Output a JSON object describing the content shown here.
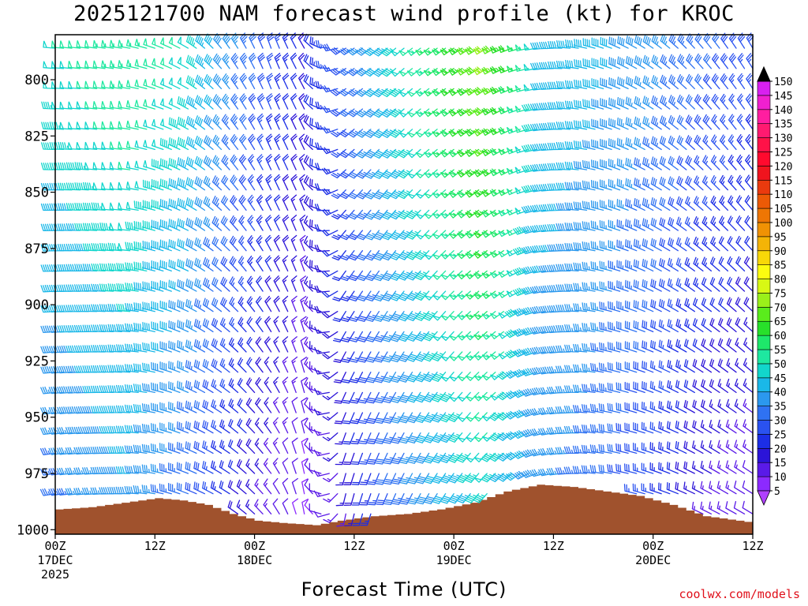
{
  "title": "2025121700 NAM forecast wind profile (kt) for KROC",
  "credit": "coolwx.com/models",
  "chart_data": {
    "type": "wind-barb profile",
    "xlabel": "Forecast Time (UTC)",
    "x_ticks": [
      {
        "hour": 0,
        "lines": [
          "00Z",
          "17DEC",
          "2025"
        ]
      },
      {
        "hour": 12,
        "lines": [
          "12Z"
        ]
      },
      {
        "hour": 24,
        "lines": [
          "00Z",
          "18DEC"
        ]
      },
      {
        "hour": 36,
        "lines": [
          "12Z"
        ]
      },
      {
        "hour": 48,
        "lines": [
          "00Z",
          "19DEC"
        ]
      },
      {
        "hour": 60,
        "lines": [
          "12Z"
        ]
      },
      {
        "hour": 72,
        "lines": [
          "00Z",
          "20DEC"
        ]
      },
      {
        "hour": 84,
        "lines": [
          "12Z"
        ]
      }
    ],
    "xlim_hours": [
      0,
      84
    ],
    "y_ticks_hpa": [
      800,
      825,
      850,
      875,
      900,
      925,
      950,
      975,
      1000
    ],
    "ylim_hpa": [
      1002,
      780
    ],
    "time_step_hours": 1,
    "level_step_hpa": 9,
    "colorbar_levels_kt": [
      5,
      10,
      15,
      20,
      25,
      30,
      35,
      40,
      45,
      50,
      55,
      60,
      65,
      70,
      75,
      80,
      85,
      90,
      95,
      100,
      105,
      110,
      115,
      120,
      125,
      130,
      135,
      140,
      145,
      150
    ],
    "colorbar_colors": [
      "#8c2aff",
      "#5a1ae8",
      "#2b14d8",
      "#1c2ee6",
      "#2a52f0",
      "#2f72f2",
      "#2b98ee",
      "#1ab8e8",
      "#12d6cc",
      "#1ee8a0",
      "#1ee86a",
      "#28e02a",
      "#5aec1c",
      "#9af01a",
      "#d8f814",
      "#fcfc10",
      "#f8d808",
      "#f4b406",
      "#f09204",
      "#ee7604",
      "#ec5a06",
      "#ea3a0e",
      "#f0141e",
      "#ff0a2e",
      "#ff1248",
      "#ff1a70",
      "#ff1ea0",
      "#f020d0",
      "#d820f0"
    ],
    "terrain_color": "#a0522d",
    "terrain_pressure_hpa": [
      {
        "hour": 0,
        "p": 991
      },
      {
        "hour": 4,
        "p": 990
      },
      {
        "hour": 8,
        "p": 988
      },
      {
        "hour": 12,
        "p": 986
      },
      {
        "hour": 15,
        "p": 987
      },
      {
        "hour": 18,
        "p": 989
      },
      {
        "hour": 21,
        "p": 993
      },
      {
        "hour": 24,
        "p": 996
      },
      {
        "hour": 27,
        "p": 997
      },
      {
        "hour": 31,
        "p": 998
      },
      {
        "hour": 34,
        "p": 996
      },
      {
        "hour": 38,
        "p": 994
      },
      {
        "hour": 42,
        "p": 993
      },
      {
        "hour": 46,
        "p": 991
      },
      {
        "hour": 50,
        "p": 988
      },
      {
        "hour": 54,
        "p": 983
      },
      {
        "hour": 58,
        "p": 980
      },
      {
        "hour": 62,
        "p": 981
      },
      {
        "hour": 66,
        "p": 983
      },
      {
        "hour": 70,
        "p": 985
      },
      {
        "hour": 74,
        "p": 989
      },
      {
        "hour": 78,
        "p": 994
      },
      {
        "hour": 84,
        "p": 997
      }
    ],
    "wind_keyframes": [
      {
        "hour": 0,
        "dir_top": 275,
        "dir_bot": 260,
        "spd_top": 50,
        "spd_bot": 32
      },
      {
        "hour": 9,
        "dir_top": 280,
        "dir_bot": 270,
        "spd_top": 55,
        "spd_bot": 38
      },
      {
        "hour": 16,
        "dir_top": 300,
        "dir_bot": 290,
        "spd_top": 50,
        "spd_bot": 30
      },
      {
        "hour": 21,
        "dir_top": 325,
        "dir_bot": 300,
        "spd_top": 38,
        "spd_bot": 20
      },
      {
        "hour": 26,
        "dir_top": 340,
        "dir_bot": 320,
        "spd_top": 28,
        "spd_bot": 12
      },
      {
        "hour": 30,
        "dir_top": 330,
        "dir_bot": 350,
        "spd_top": 20,
        "spd_bot": 8
      },
      {
        "hour": 35,
        "dir_top": 240,
        "dir_bot": 190,
        "spd_top": 30,
        "spd_bot": 14
      },
      {
        "hour": 40,
        "dir_top": 230,
        "dir_bot": 200,
        "spd_top": 45,
        "spd_bot": 28
      },
      {
        "hour": 46,
        "dir_top": 235,
        "dir_bot": 210,
        "spd_top": 58,
        "spd_bot": 38
      },
      {
        "hour": 52,
        "dir_top": 240,
        "dir_bot": 220,
        "spd_top": 72,
        "spd_bot": 45
      },
      {
        "hour": 55,
        "dir_top": 250,
        "dir_bot": 225,
        "spd_top": 62,
        "spd_bot": 40
      },
      {
        "hour": 59,
        "dir_top": 265,
        "dir_bot": 255,
        "spd_top": 45,
        "spd_bot": 35
      },
      {
        "hour": 65,
        "dir_top": 285,
        "dir_bot": 275,
        "spd_top": 42,
        "spd_bot": 32
      },
      {
        "hour": 72,
        "dir_top": 305,
        "dir_bot": 285,
        "spd_top": 38,
        "spd_bot": 24
      },
      {
        "hour": 78,
        "dir_top": 320,
        "dir_bot": 295,
        "spd_top": 32,
        "spd_bot": 14
      },
      {
        "hour": 84,
        "dir_top": 330,
        "dir_bot": 300,
        "spd_top": 28,
        "spd_bot": 10
      }
    ]
  }
}
